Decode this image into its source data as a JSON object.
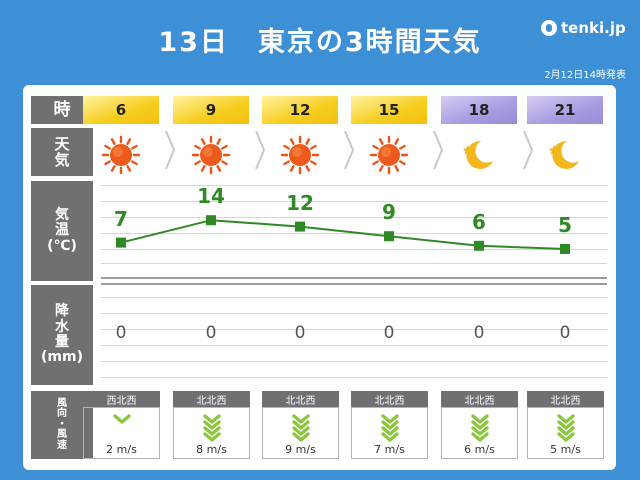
{
  "title": "13日　東京の3時間天気",
  "logo": "tenki.jp",
  "issued": "2月12日14時発表",
  "row_labels": {
    "time": "時",
    "weather": "天\n気",
    "temp": "気\n温\n(℃)",
    "precip": "降\n水\n量\n(mm)",
    "wind": "風\n向\n・\n風\n速"
  },
  "colors": {
    "background": "#3d8fd6",
    "day_header": "#f6cd1e",
    "night_header": "#a99be0",
    "temp_line": "#2f8a25",
    "label_bg": "#707070"
  },
  "slots": [
    {
      "hour": "6",
      "period": "day",
      "icon": "sun-icon",
      "temp": "7",
      "precip": "0",
      "wind_dir": "西北西",
      "wind_speed": "2 m/s"
    },
    {
      "hour": "9",
      "period": "day",
      "icon": "sun-icon",
      "temp": "14",
      "precip": "0",
      "wind_dir": "北北西",
      "wind_speed": "8 m/s"
    },
    {
      "hour": "12",
      "period": "day",
      "icon": "sun-icon",
      "temp": "12",
      "precip": "0",
      "wind_dir": "北北西",
      "wind_speed": "9 m/s"
    },
    {
      "hour": "15",
      "period": "day",
      "icon": "sun-icon",
      "temp": "9",
      "precip": "0",
      "wind_dir": "北北西",
      "wind_speed": "7 m/s"
    },
    {
      "hour": "18",
      "period": "night",
      "icon": "moon-icon",
      "temp": "6",
      "precip": "0",
      "wind_dir": "北北西",
      "wind_speed": "6 m/s"
    },
    {
      "hour": "21",
      "period": "night",
      "icon": "moon-icon",
      "temp": "5",
      "precip": "0",
      "wind_dir": "北北西",
      "wind_speed": "5 m/s"
    }
  ],
  "chart_data": {
    "type": "line",
    "x": [
      "6",
      "9",
      "12",
      "15",
      "18",
      "21"
    ],
    "values": [
      7,
      14,
      12,
      9,
      6,
      5
    ],
    "ylabel": "気温(℃)"
  }
}
